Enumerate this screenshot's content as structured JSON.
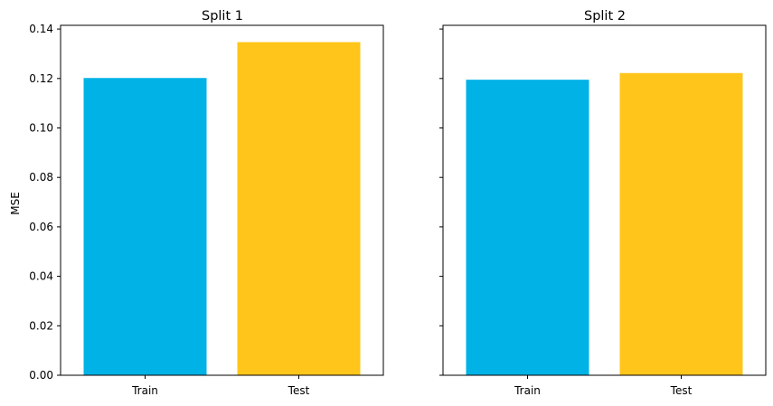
{
  "chart_data": [
    {
      "type": "bar",
      "title": "Split 1",
      "ylabel": "MSE",
      "categories": [
        "Train",
        "Test"
      ],
      "values": [
        0.1202,
        0.1347
      ],
      "ylim": [
        0,
        0.1415
      ],
      "yticks": [
        "0.00",
        "0.02",
        "0.04",
        "0.06",
        "0.08",
        "0.10",
        "0.12",
        "0.14"
      ],
      "ytick_values": [
        0,
        0.02,
        0.04,
        0.06,
        0.08,
        0.1,
        0.12,
        0.14
      ],
      "show_ytick_labels": true,
      "colors": [
        "#00b2e6",
        "#ffc51a"
      ],
      "grid": false
    },
    {
      "type": "bar",
      "title": "Split 2",
      "ylabel": "",
      "categories": [
        "Train",
        "Test"
      ],
      "values": [
        0.1195,
        0.1222
      ],
      "ylim": [
        0,
        0.1415
      ],
      "yticks": [
        "0.00",
        "0.02",
        "0.04",
        "0.06",
        "0.08",
        "0.10",
        "0.12",
        "0.14"
      ],
      "ytick_values": [
        0,
        0.02,
        0.04,
        0.06,
        0.08,
        0.1,
        0.12,
        0.14
      ],
      "show_ytick_labels": false,
      "colors": [
        "#00b2e6",
        "#ffc51a"
      ],
      "grid": false
    }
  ]
}
